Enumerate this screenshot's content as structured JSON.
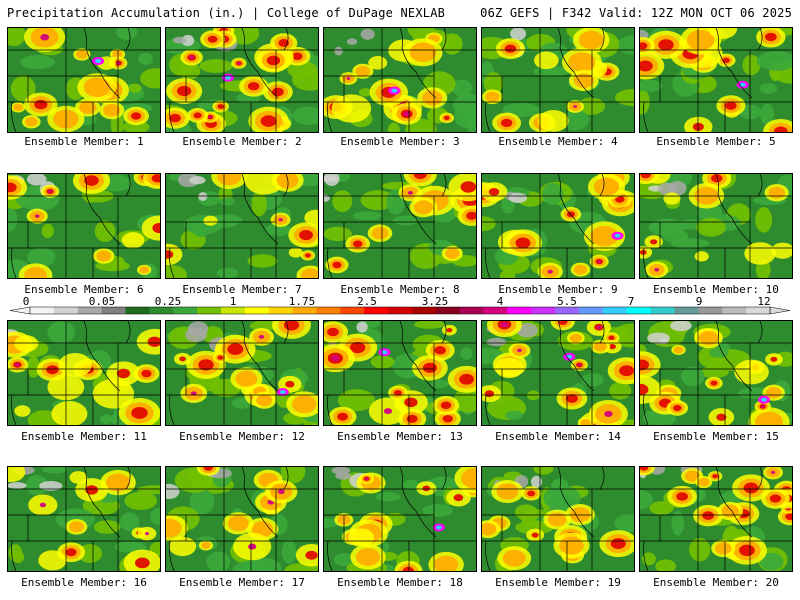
{
  "header": {
    "left": "Precipitation Accumulation (in.) | College of DuPage NEXLAB",
    "right": "06Z GEFS | F342 Valid: 12Z MON OCT 06 2025"
  },
  "caption_prefix": "Ensemble Member: ",
  "members": [
    {
      "id": "1",
      "wet": 0.55,
      "seed": 11
    },
    {
      "id": "2",
      "wet": 0.95,
      "seed": 23
    },
    {
      "id": "3",
      "wet": 0.55,
      "seed": 37
    },
    {
      "id": "4",
      "wet": 0.45,
      "seed": 41
    },
    {
      "id": "5",
      "wet": 0.65,
      "seed": 53
    },
    {
      "id": "6",
      "wet": 0.45,
      "seed": 67
    },
    {
      "id": "7",
      "wet": 0.35,
      "seed": 71
    },
    {
      "id": "8",
      "wet": 0.35,
      "seed": 83
    },
    {
      "id": "9",
      "wet": 0.6,
      "seed": 97
    },
    {
      "id": "10",
      "wet": 0.45,
      "seed": 101
    },
    {
      "id": "11",
      "wet": 0.55,
      "seed": 113
    },
    {
      "id": "12",
      "wet": 0.65,
      "seed": 127
    },
    {
      "id": "13",
      "wet": 0.55,
      "seed": 131
    },
    {
      "id": "14",
      "wet": 0.75,
      "seed": 149
    },
    {
      "id": "15",
      "wet": 0.7,
      "seed": 151
    },
    {
      "id": "16",
      "wet": 0.35,
      "seed": 163
    },
    {
      "id": "17",
      "wet": 0.4,
      "seed": 173
    },
    {
      "id": "18",
      "wet": 0.55,
      "seed": 181
    },
    {
      "id": "19",
      "wet": 0.4,
      "seed": 191
    },
    {
      "id": "20",
      "wet": 0.85,
      "seed": 197
    }
  ],
  "colorbar": {
    "labels": [
      "0",
      "0.05",
      "0.25",
      "1",
      "1.75",
      "2.5",
      "3.25",
      "4",
      "5.5",
      "7",
      "9",
      "12"
    ],
    "colors": [
      "#f2f2f2",
      "#d2d2d2",
      "#a8a8a8",
      "#808080",
      "#1e6b1e",
      "#2e8b2e",
      "#3ca83c",
      "#73c000",
      "#c8e600",
      "#ffff00",
      "#ffd500",
      "#ffaa00",
      "#ff7f00",
      "#ff4500",
      "#ff0000",
      "#d40000",
      "#aa0000",
      "#880020",
      "#aa0055",
      "#d4007f",
      "#ff00ff",
      "#cc33ff",
      "#9966ff",
      "#6699ff",
      "#33ccff",
      "#00ffff",
      "#33cccc",
      "#669999",
      "#999999",
      "#bbbbbb",
      "#d9d9d9"
    ]
  }
}
